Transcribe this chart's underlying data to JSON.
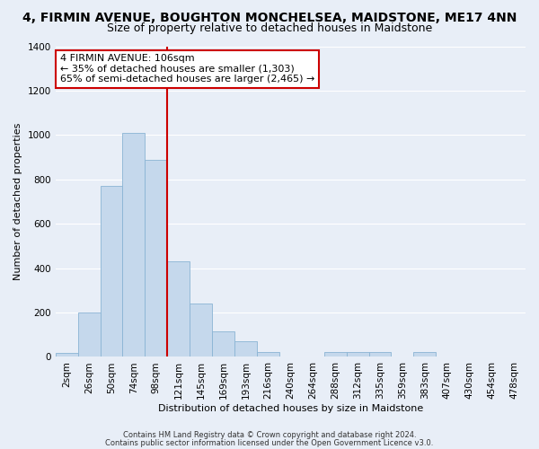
{
  "title": "4, FIRMIN AVENUE, BOUGHTON MONCHELSEA, MAIDSTONE, ME17 4NN",
  "subtitle": "Size of property relative to detached houses in Maidstone",
  "xlabel": "Distribution of detached houses by size in Maidstone",
  "ylabel": "Number of detached properties",
  "bar_labels": [
    "2sqm",
    "26sqm",
    "50sqm",
    "74sqm",
    "98sqm",
    "121sqm",
    "145sqm",
    "169sqm",
    "193sqm",
    "216sqm",
    "240sqm",
    "264sqm",
    "288sqm",
    "312sqm",
    "335sqm",
    "359sqm",
    "383sqm",
    "407sqm",
    "430sqm",
    "454sqm",
    "478sqm"
  ],
  "bar_values": [
    20,
    200,
    770,
    1010,
    890,
    430,
    240,
    115,
    70,
    22,
    0,
    0,
    22,
    22,
    22,
    0,
    22,
    0,
    0,
    0,
    0
  ],
  "bar_color": "#c5d8ec",
  "bar_edge_color": "#8ab4d4",
  "vline_color": "#cc0000",
  "vline_x": 4.5,
  "ylim": [
    0,
    1400
  ],
  "yticks": [
    0,
    200,
    400,
    600,
    800,
    1000,
    1200,
    1400
  ],
  "annotation_line1": "4 FIRMIN AVENUE: 106sqm",
  "annotation_line2": "← 35% of detached houses are smaller (1,303)",
  "annotation_line3": "65% of semi-detached houses are larger (2,465) →",
  "annotation_box_color": "#ffffff",
  "annotation_box_edge": "#cc0000",
  "footer_line1": "Contains HM Land Registry data © Crown copyright and database right 2024.",
  "footer_line2": "Contains public sector information licensed under the Open Government Licence v3.0.",
  "background_color": "#e8eef7",
  "grid_color": "#ffffff",
  "title_fontsize": 10,
  "subtitle_fontsize": 9,
  "axis_fontsize": 8,
  "tick_fontsize": 7.5
}
